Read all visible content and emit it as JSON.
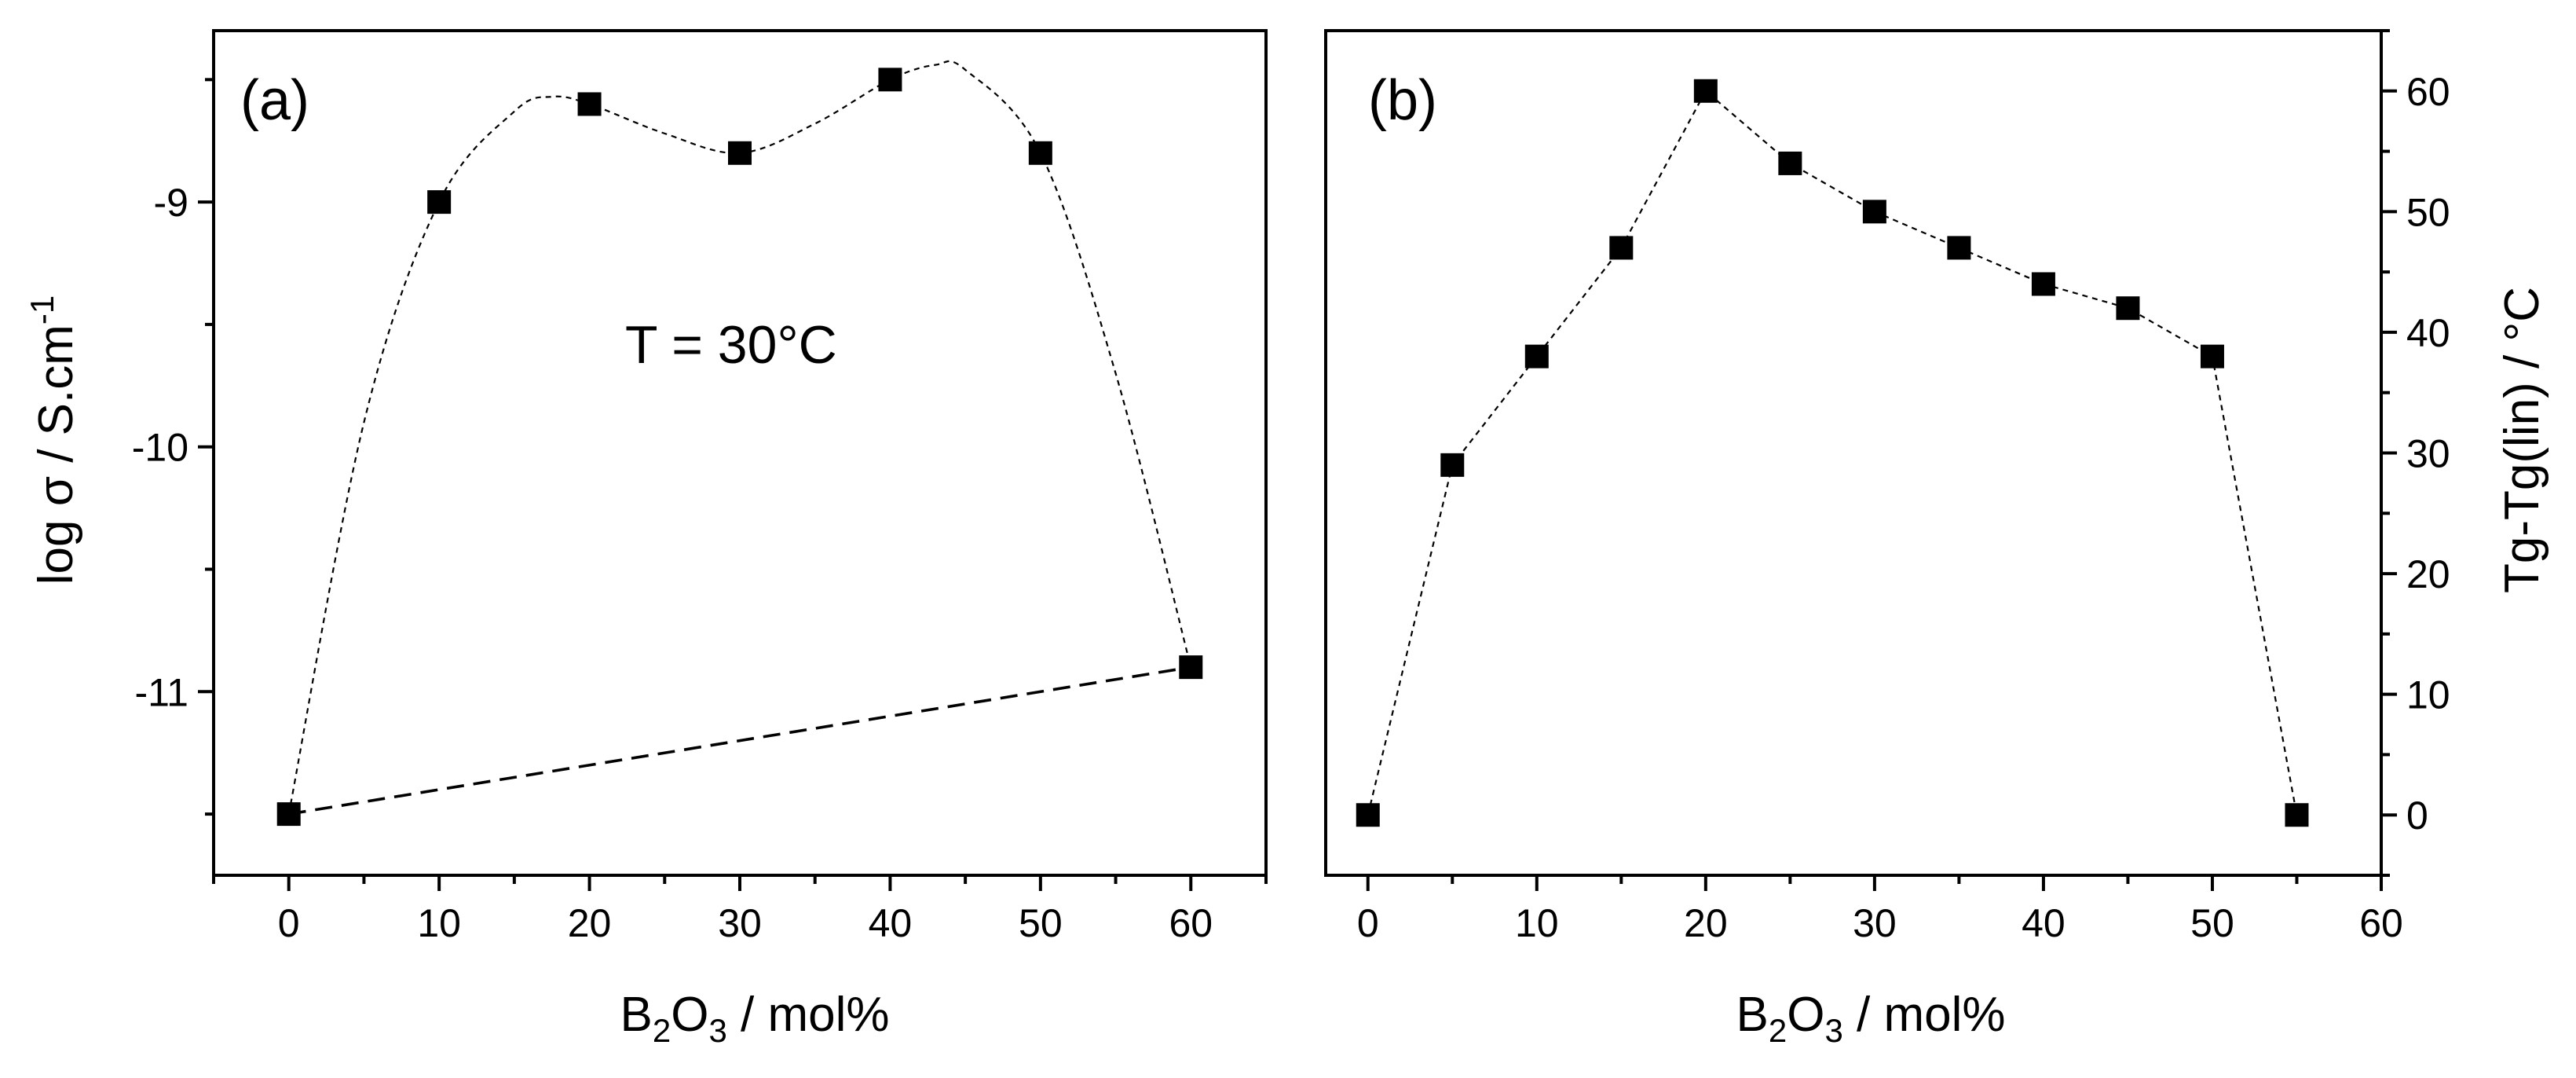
{
  "figure": {
    "background": "#ffffff",
    "ink": "#000000"
  },
  "chart_data": [
    {
      "type": "scatter",
      "panel_label": "(a)",
      "annotation": "T = 30°C",
      "xlabel": {
        "base": "B",
        "sub1": "2",
        "mid": "O",
        "sub2": "3",
        "rest": " / mol%"
      },
      "ylabel": {
        "text": "log σ / S.cm",
        "sup": "-1"
      },
      "xlim": [
        -5,
        65
      ],
      "ylim": [
        -11.75,
        -8.3
      ],
      "xticks": [
        0,
        10,
        20,
        30,
        40,
        50,
        60
      ],
      "xtick_labels": [
        "0",
        "10",
        "20",
        "30",
        "40",
        "50",
        "60"
      ],
      "yticks": [
        -11,
        -10,
        -9
      ],
      "ytick_labels": [
        "-11",
        "-10",
        "-9"
      ],
      "y_axis_side": "left",
      "series": [
        {
          "name": "log sigma at 30 C",
          "marker": "square",
          "x": [
            0,
            10,
            20,
            30,
            40,
            50,
            60
          ],
          "y": [
            -11.5,
            -9.0,
            -8.6,
            -8.8,
            -8.5,
            -8.8,
            -10.9
          ]
        }
      ],
      "guide_curve": {
        "style": "fine dashed spline through points 0 to 60",
        "x": [
          0,
          5,
          10,
          15,
          17.5,
          20,
          25,
          30,
          35,
          40,
          43,
          45,
          50,
          55,
          60
        ],
        "y": [
          -11.5,
          -9.9,
          -9.0,
          -8.63,
          -8.57,
          -8.6,
          -8.72,
          -8.8,
          -8.68,
          -8.5,
          -8.44,
          -8.46,
          -8.8,
          -9.7,
          -10.9
        ]
      },
      "linear_guide": {
        "style": "dashed straight line",
        "x": [
          0,
          60
        ],
        "y": [
          -11.5,
          -10.9
        ]
      }
    },
    {
      "type": "scatter",
      "panel_label": "(b)",
      "xlabel": {
        "base": "B",
        "sub1": "2",
        "mid": "O",
        "sub2": "3",
        "rest": " / mol%"
      },
      "ylabel": {
        "text": "Tg-Tg(lin) / °C"
      },
      "xlim": [
        -2.5,
        60
      ],
      "ylim": [
        -5,
        65
      ],
      "xticks": [
        0,
        10,
        20,
        30,
        40,
        50,
        60
      ],
      "xtick_labels": [
        "0",
        "10",
        "20",
        "30",
        "40",
        "50",
        "60"
      ],
      "yticks": [
        0,
        10,
        20,
        30,
        40,
        50,
        60
      ],
      "ytick_labels": [
        "0",
        "10",
        "20",
        "30",
        "40",
        "50",
        "60"
      ],
      "y_axis_side": "right",
      "series": [
        {
          "name": "Tg - Tg(lin)",
          "marker": "square",
          "line": "dashed",
          "x": [
            0,
            5,
            10,
            15,
            20,
            25,
            30,
            35,
            40,
            45,
            50,
            55
          ],
          "y": [
            0,
            29,
            38,
            47,
            60,
            54,
            50,
            47,
            44,
            42,
            38,
            0
          ]
        }
      ]
    }
  ]
}
